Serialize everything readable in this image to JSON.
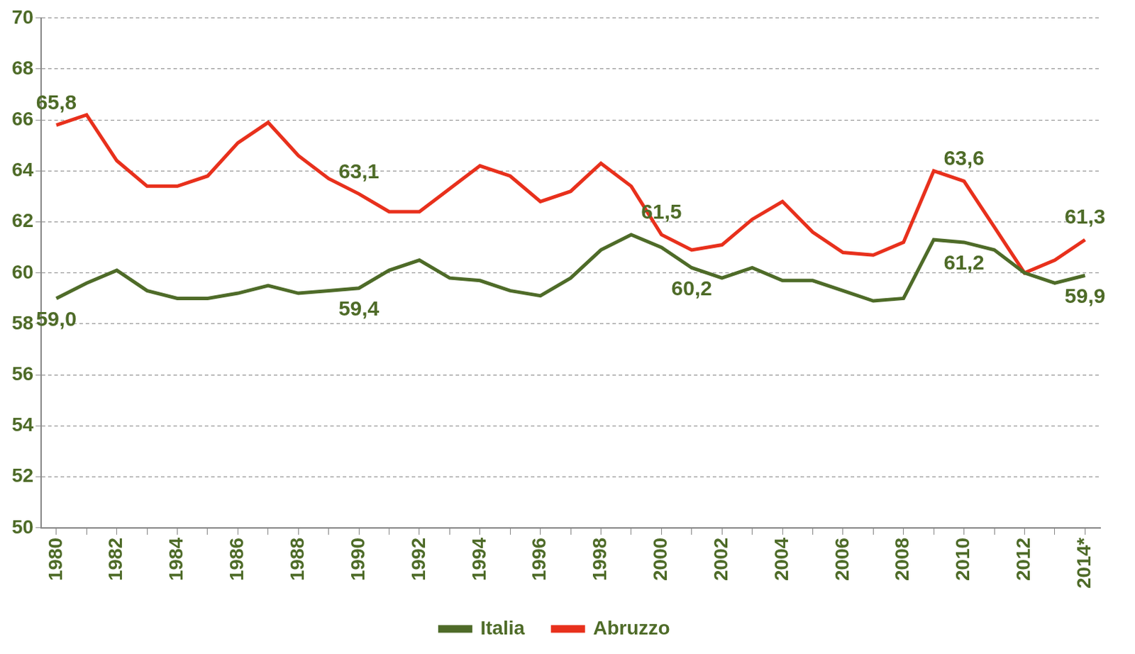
{
  "chart_data": {
    "type": "line",
    "categories": [
      "1980",
      null,
      "1982",
      null,
      "1984",
      null,
      "1986",
      null,
      "1988",
      null,
      "1990",
      null,
      "1992",
      null,
      "1994",
      null,
      "1996",
      null,
      "1998",
      null,
      "2000",
      null,
      "2002",
      null,
      "2004",
      null,
      "2006",
      null,
      "2008",
      null,
      "2010",
      null,
      "2012",
      null,
      "2014*"
    ],
    "series": [
      {
        "name": "Italia",
        "color": "#4e6b28",
        "values": [
          59.0,
          59.6,
          60.1,
          59.3,
          59.0,
          59.0,
          59.2,
          59.5,
          59.2,
          59.3,
          59.4,
          60.1,
          60.5,
          59.8,
          59.7,
          59.3,
          59.1,
          59.8,
          60.9,
          61.5,
          61.0,
          60.2,
          59.8,
          60.2,
          59.7,
          59.7,
          59.3,
          58.9,
          59.0,
          61.3,
          61.2,
          60.9,
          60.0,
          59.6,
          59.9
        ],
        "value_labels": [
          "59,0",
          null,
          null,
          null,
          null,
          null,
          null,
          null,
          null,
          null,
          "59,4",
          null,
          null,
          null,
          null,
          null,
          null,
          null,
          null,
          null,
          null,
          "60,2",
          null,
          null,
          null,
          null,
          null,
          null,
          null,
          null,
          "61,2",
          null,
          null,
          null,
          "59,9"
        ]
      },
      {
        "name": "Abruzzo",
        "color": "#e8301c",
        "values": [
          65.8,
          66.2,
          64.4,
          63.4,
          63.4,
          63.8,
          65.1,
          65.9,
          64.6,
          63.7,
          63.1,
          62.4,
          62.4,
          63.3,
          64.2,
          63.8,
          62.8,
          63.2,
          64.3,
          63.4,
          61.5,
          60.9,
          61.1,
          62.1,
          62.8,
          61.6,
          60.8,
          60.7,
          61.2,
          64.0,
          63.6,
          61.8,
          60.0,
          60.5,
          61.3
        ],
        "value_labels": [
          "65,8",
          null,
          null,
          null,
          null,
          null,
          null,
          null,
          null,
          null,
          "63,1",
          null,
          null,
          null,
          null,
          null,
          null,
          null,
          null,
          null,
          "61,5",
          null,
          null,
          null,
          null,
          null,
          null,
          null,
          null,
          null,
          "63,6",
          null,
          null,
          null,
          "61,3"
        ]
      }
    ],
    "ylim": [
      50,
      70
    ],
    "yticks": [
      50,
      52,
      54,
      56,
      58,
      60,
      62,
      64,
      66,
      68,
      70
    ],
    "grid": true,
    "legend": "bottom",
    "data_labels": true
  }
}
